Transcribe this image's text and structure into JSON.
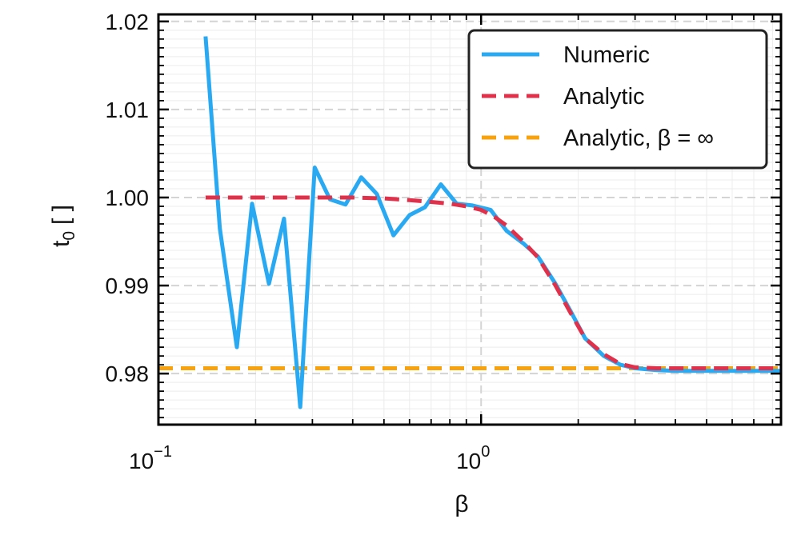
{
  "chart_data": {
    "type": "line",
    "title": "",
    "xlabel": "β",
    "ylabel_main": "t",
    "ylabel_sub": "0",
    "ylabel_unit": "[ ]",
    "xscale": "log",
    "xlim": [
      0.1,
      8.5
    ],
    "ylim": [
      0.9742,
      1.0208
    ],
    "x_ticks": [
      {
        "base": "10",
        "exp": "−1"
      },
      {
        "base": "10",
        "exp": "0"
      }
    ],
    "y_ticks": [
      "0.98",
      "0.99",
      "1.00",
      "1.01",
      "1.02"
    ],
    "grid": true,
    "legend_position": "top-right",
    "series": [
      {
        "name": "Numeric",
        "style": "solid",
        "color": "#29a9f2",
        "x": [
          0.14,
          0.155,
          0.175,
          0.195,
          0.22,
          0.245,
          0.275,
          0.305,
          0.34,
          0.38,
          0.425,
          0.475,
          0.535,
          0.6,
          0.67,
          0.75,
          0.84,
          0.94,
          1.07,
          1.2,
          1.35,
          1.5,
          1.7,
          1.9,
          2.1,
          2.4,
          2.7,
          3.0,
          3.5,
          4.0,
          5.0,
          6.0,
          7.0,
          8.5
        ],
        "y": [
          1.0183,
          0.9965,
          0.983,
          0.9993,
          0.9902,
          0.9976,
          0.9762,
          1.0034,
          0.9998,
          0.9992,
          1.0023,
          1.0004,
          0.9957,
          0.998,
          0.9989,
          1.0015,
          0.9993,
          0.9991,
          0.9986,
          0.9962,
          0.9948,
          0.9933,
          0.9902,
          0.987,
          0.984,
          0.982,
          0.981,
          0.9806,
          0.9804,
          0.9803,
          0.9803,
          0.9803,
          0.9803,
          0.9803
        ]
      },
      {
        "name": "Analytic",
        "style": "dashed",
        "color": "#e0304a",
        "x": [
          0.14,
          0.2,
          0.3,
          0.4,
          0.5,
          0.6,
          0.7,
          0.8,
          0.9,
          1.0,
          1.1,
          1.2,
          1.35,
          1.5,
          1.7,
          1.9,
          2.1,
          2.4,
          2.7,
          3.0,
          3.5,
          4.0,
          5.0,
          6.0,
          7.0,
          8.5
        ],
        "y": [
          1.0,
          1.0,
          1.0,
          1.0,
          0.9999,
          0.9997,
          0.9995,
          0.9993,
          0.999,
          0.9986,
          0.9978,
          0.9968,
          0.995,
          0.9932,
          0.99,
          0.9868,
          0.984,
          0.9822,
          0.9811,
          0.9807,
          0.9806,
          0.9806,
          0.9806,
          0.9806,
          0.9806,
          0.9806
        ]
      },
      {
        "name": "Analytic, β = ∞",
        "style": "dashed",
        "color": "#f8a20e",
        "x": [
          0.1,
          8.5
        ],
        "y": [
          0.9806,
          0.9806
        ]
      }
    ]
  }
}
